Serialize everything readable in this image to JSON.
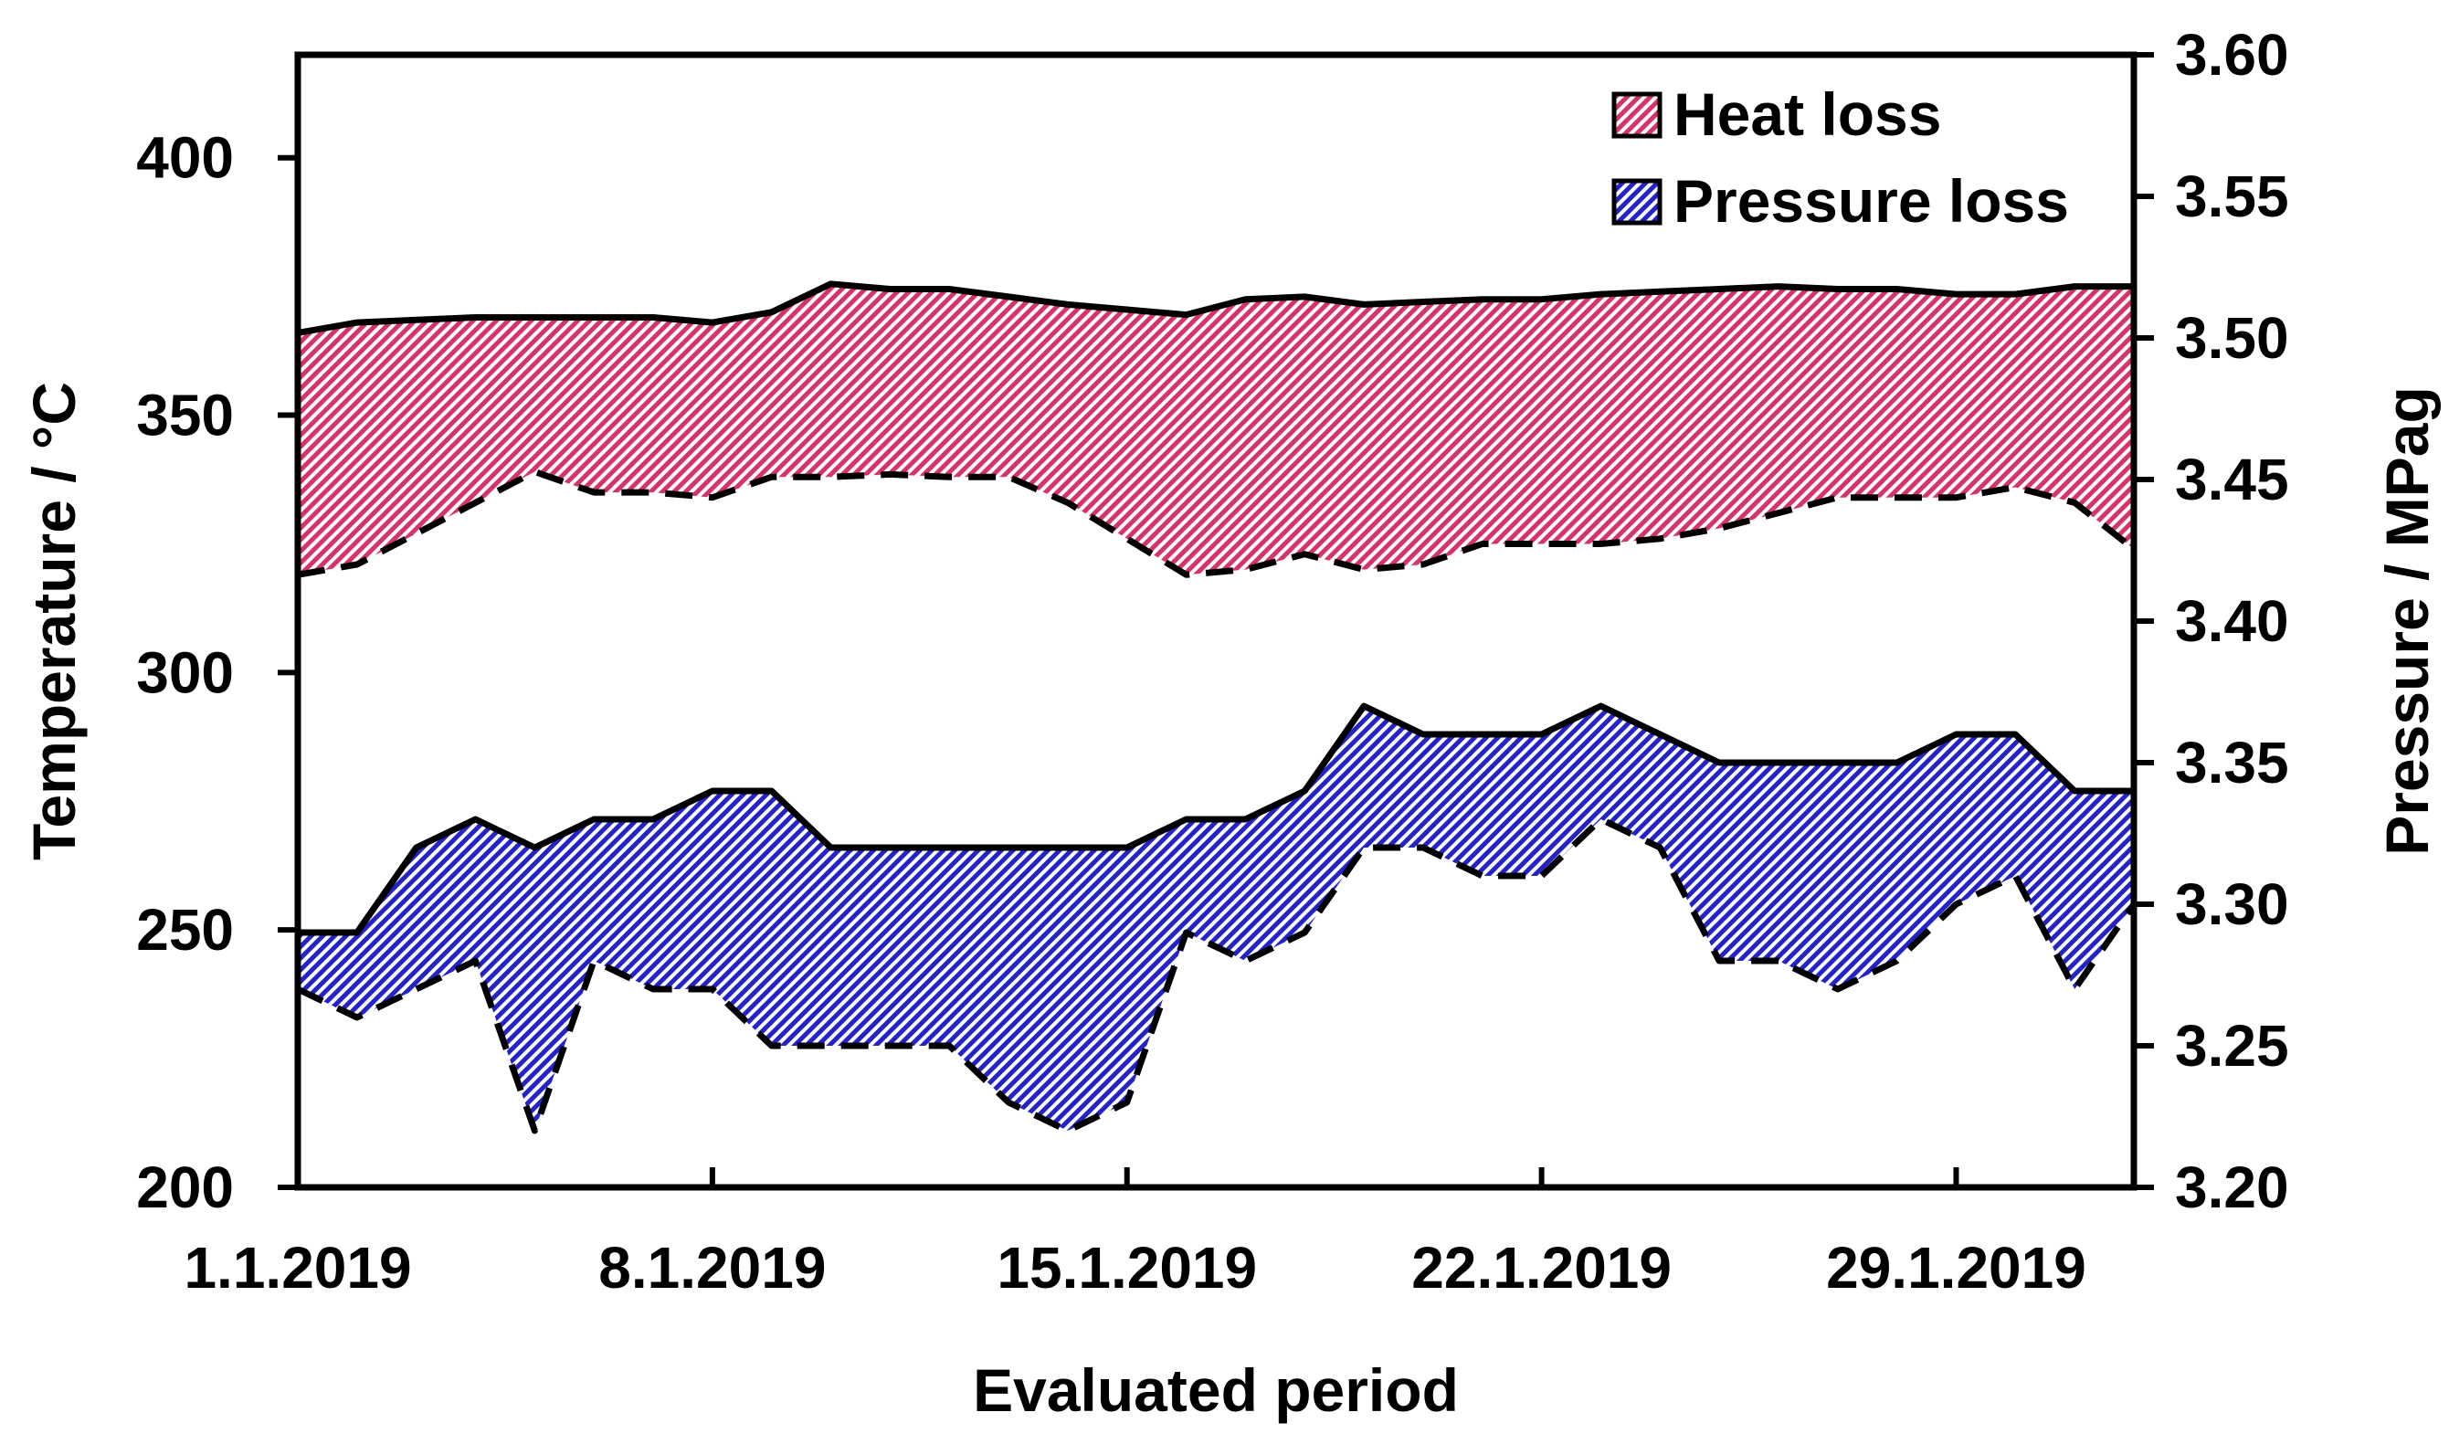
{
  "chart_data": {
    "type": "area",
    "xlabel": "Evaluated period",
    "ylabel_left": "Temperature / °C",
    "ylabel_right": "Pressure / MPag",
    "x_day_range": [
      1,
      32
    ],
    "x_ticks": [
      {
        "day": 1,
        "label": "1.1.2019"
      },
      {
        "day": 8,
        "label": "8.1.2019"
      },
      {
        "day": 15,
        "label": "15.1.2019"
      },
      {
        "day": 22,
        "label": "22.1.2019"
      },
      {
        "day": 29,
        "label": "29.1.2019"
      }
    ],
    "ylim_left": [
      200,
      420
    ],
    "yticks_left": [
      {
        "value": 200,
        "label": "200"
      },
      {
        "value": 250,
        "label": "250"
      },
      {
        "value": 300,
        "label": "300"
      },
      {
        "value": 350,
        "label": "350"
      },
      {
        "value": 400,
        "label": "400"
      }
    ],
    "ylim_right": [
      3.2,
      3.6
    ],
    "yticks_right": [
      {
        "value": 3.2,
        "label": "3.20"
      },
      {
        "value": 3.25,
        "label": "3.25"
      },
      {
        "value": 3.3,
        "label": "3.30"
      },
      {
        "value": 3.35,
        "label": "3.35"
      },
      {
        "value": 3.4,
        "label": "3.40"
      },
      {
        "value": 3.45,
        "label": "3.45"
      },
      {
        "value": 3.5,
        "label": "3.50"
      },
      {
        "value": 3.55,
        "label": "3.55"
      },
      {
        "value": 3.6,
        "label": "3.60"
      }
    ],
    "legend": [
      {
        "label": "Heat loss",
        "color": "#d6336c"
      },
      {
        "label": "Pressure loss",
        "color": "#2323c8"
      }
    ],
    "series": [
      {
        "name": "Heat loss",
        "axis": "left",
        "color": "#d6336c",
        "x": [
          1,
          2,
          3,
          4,
          5,
          6,
          7,
          8,
          9,
          10,
          11,
          12,
          13,
          14,
          15,
          16,
          17,
          18,
          19,
          20,
          21,
          22,
          23,
          24,
          25,
          26,
          27,
          28,
          29,
          30,
          31,
          32
        ],
        "upper": [
          366,
          368,
          368.5,
          369,
          369,
          369,
          369,
          368,
          370,
          375.5,
          374.5,
          374.5,
          373,
          371.5,
          370.5,
          369.5,
          372.5,
          373,
          371.5,
          372,
          372.5,
          372.5,
          373.5,
          374,
          374.5,
          375,
          374.5,
          374.5,
          373.5,
          373.5,
          375,
          375
        ],
        "lower": [
          319,
          321,
          327,
          333,
          339,
          335,
          335,
          334,
          338,
          338,
          338.5,
          338,
          338,
          333,
          326,
          319,
          320,
          323,
          320,
          321,
          325,
          325,
          325,
          326,
          328,
          331,
          334,
          334,
          334,
          336,
          333,
          324
        ]
      },
      {
        "name": "Pressure loss",
        "axis": "right",
        "color": "#2323c8",
        "x": [
          1,
          2,
          3,
          4,
          5,
          6,
          7,
          8,
          9,
          10,
          11,
          12,
          13,
          14,
          15,
          16,
          17,
          18,
          19,
          20,
          21,
          22,
          23,
          24,
          25,
          26,
          27,
          28,
          29,
          30,
          31,
          32
        ],
        "upper": [
          3.29,
          3.29,
          3.32,
          3.33,
          3.32,
          3.33,
          3.33,
          3.34,
          3.34,
          3.32,
          3.32,
          3.32,
          3.32,
          3.32,
          3.32,
          3.33,
          3.33,
          3.34,
          3.37,
          3.36,
          3.36,
          3.36,
          3.37,
          3.36,
          3.35,
          3.35,
          3.35,
          3.35,
          3.36,
          3.36,
          3.34,
          3.34
        ],
        "lower": [
          3.27,
          3.26,
          3.27,
          3.28,
          3.22,
          3.28,
          3.27,
          3.27,
          3.25,
          3.25,
          3.25,
          3.25,
          3.23,
          3.22,
          3.23,
          3.29,
          3.28,
          3.29,
          3.32,
          3.32,
          3.31,
          3.31,
          3.33,
          3.32,
          3.28,
          3.28,
          3.27,
          3.28,
          3.3,
          3.31,
          3.27,
          3.3
        ]
      }
    ]
  }
}
